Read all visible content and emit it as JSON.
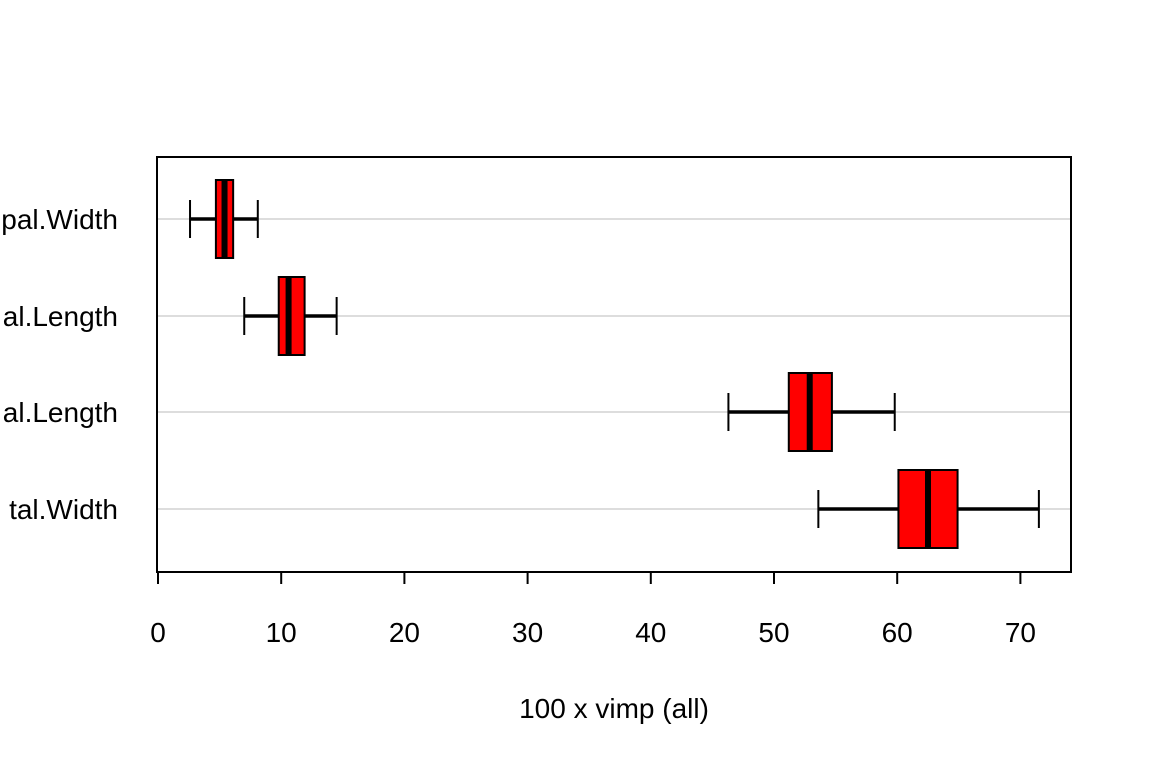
{
  "chart_data": {
    "type": "boxplot",
    "orientation": "horizontal",
    "title": "",
    "xlabel": "100 x vimp (all)",
    "ylabel": "",
    "xlim": [
      0,
      74
    ],
    "x_ticks": [
      0,
      10,
      20,
      30,
      40,
      50,
      60,
      70
    ],
    "x_tick_labels": [
      "0",
      "10",
      "20",
      "30",
      "40",
      "50",
      "60",
      "70"
    ],
    "grid": "horizontal",
    "categories": [
      "Sepal.Width",
      "Sepal.Length",
      "Petal.Length",
      "Petal.Width"
    ],
    "category_labels_visible": [
      "pal.Width",
      "al.Length",
      "al.Length",
      "tal.Width"
    ],
    "boxes": [
      {
        "name": "Sepal.Width",
        "whisker_low": 2.6,
        "q1": 4.7,
        "median": 5.4,
        "q3": 6.1,
        "whisker_high": 8.1
      },
      {
        "name": "Sepal.Length",
        "whisker_low": 7.0,
        "q1": 9.8,
        "median": 10.6,
        "q3": 11.9,
        "whisker_high": 14.5
      },
      {
        "name": "Petal.Length",
        "whisker_low": 46.3,
        "q1": 51.2,
        "median": 52.9,
        "q3": 54.7,
        "whisker_high": 59.8
      },
      {
        "name": "Petal.Width",
        "whisker_low": 53.6,
        "q1": 60.1,
        "median": 62.5,
        "q3": 64.9,
        "whisker_high": 71.5
      }
    ],
    "box_color": "#ff0000",
    "line_color": "#000000",
    "grid_color": "#dddddd"
  }
}
